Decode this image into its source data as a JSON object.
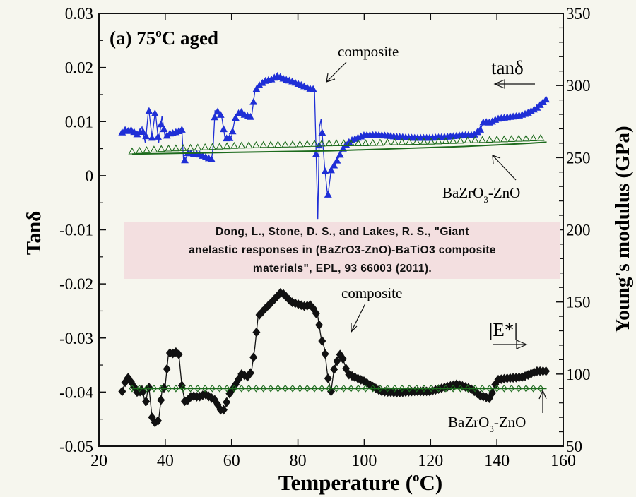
{
  "chart_data": {
    "type": "scatter",
    "title": "(a) 75",
    "title_sup": "o",
    "title_suffix": "C aged",
    "xlabel": "Temperature (",
    "xlabel_sup": "o",
    "xlabel_suffix": "C)",
    "ylabel_left": "Tanδ",
    "ylabel_right": "Young's modulus (GPa)",
    "xlim": [
      20,
      160
    ],
    "ylim_left": [
      -0.05,
      0.03
    ],
    "ylim_right": [
      50,
      350
    ],
    "xticks": [
      "20",
      "40",
      "60",
      "80",
      "100",
      "120",
      "140",
      "160"
    ],
    "yticks_left": [
      "0.03",
      "0.02",
      "0.01",
      "0",
      "-0.01",
      "-0.02",
      "-0.03",
      "-0.04",
      "-0.05"
    ],
    "yticks_right": [
      "350",
      "300",
      "250",
      "200",
      "150",
      "100",
      "50"
    ],
    "series": [
      {
        "name": "composite tanδ",
        "axis": "left",
        "color": "#1f2fd6",
        "marker": "triangle",
        "x": [
          27,
          28,
          29,
          30,
          31,
          32,
          33,
          34,
          35,
          36,
          37,
          38,
          39,
          40,
          41,
          42,
          43,
          44,
          45,
          45.5,
          46,
          47,
          48,
          50,
          52,
          54,
          54.5,
          55,
          56,
          57,
          58,
          59,
          60,
          61,
          62,
          63,
          64,
          65,
          66,
          67,
          68,
          70,
          72,
          74,
          76,
          78,
          80,
          82,
          84,
          85,
          85.5,
          86,
          86.5,
          87,
          88,
          89,
          90,
          91,
          92,
          94,
          96,
          98,
          100,
          105,
          110,
          115,
          120,
          125,
          130,
          133,
          135,
          136,
          138,
          140,
          143,
          146,
          149,
          152,
          155
        ],
        "y": [
          0.008,
          0.0085,
          0.0082,
          0.0085,
          0.0078,
          0.0075,
          0.009,
          0.006,
          0.0125,
          0.007,
          0.012,
          0.006,
          0.011,
          0.007,
          0.0078,
          0.0078,
          0.008,
          0.0082,
          0.0085,
          0.003,
          0.0028,
          0.0045,
          0.004,
          0.004,
          0.0035,
          0.003,
          0.006,
          0.012,
          0.0118,
          0.011,
          0.007,
          0.0068,
          0.0072,
          0.0105,
          0.0115,
          0.0118,
          0.0112,
          0.011,
          0.0108,
          0.0155,
          0.0165,
          0.0175,
          0.0178,
          0.0185,
          0.0178,
          0.0175,
          0.017,
          0.0165,
          0.016,
          0.016,
          0.004,
          -0.008,
          0.009,
          0.0105,
          0.002,
          -0.004,
          0.001,
          0.002,
          0.003,
          0.0055,
          0.0065,
          0.007,
          0.0075,
          0.0075,
          0.0072,
          0.007,
          0.007,
          0.0072,
          0.0075,
          0.0075,
          0.0085,
          0.01,
          0.0098,
          0.0105,
          0.0108,
          0.011,
          0.0115,
          0.0125,
          0.0142
        ]
      },
      {
        "name": "BaZrO3-ZnO tanδ",
        "axis": "left",
        "color": "#1d6b1d",
        "marker": "triangle-open",
        "x": [
          30,
          40,
          50,
          60,
          70,
          80,
          90,
          100,
          110,
          120,
          130,
          140,
          150,
          155
        ],
        "y": [
          0.0045,
          0.005,
          0.0052,
          0.0055,
          0.0057,
          0.0058,
          0.006,
          0.006,
          0.0062,
          0.0063,
          0.0065,
          0.0067,
          0.0069,
          0.007
        ],
        "line_y": [
          0.004,
          0.0041,
          0.0042,
          0.0043,
          0.0044,
          0.0045,
          0.0046,
          0.0048,
          0.005,
          0.0052,
          0.0054,
          0.0057,
          0.006,
          0.0062
        ]
      },
      {
        "name": "composite |E*|",
        "axis": "right",
        "color": "#111111",
        "marker": "diamond",
        "x": [
          27,
          28,
          29,
          30,
          31,
          32,
          33,
          34,
          35,
          36,
          37,
          38,
          39,
          40,
          41,
          42,
          43,
          44,
          45,
          46,
          48,
          50,
          52,
          55,
          57,
          58,
          59,
          61,
          63,
          65,
          66,
          67,
          68,
          70,
          73,
          75,
          78,
          82,
          84,
          86,
          87,
          88,
          89,
          90,
          91,
          93,
          95,
          98,
          100,
          105,
          110,
          115,
          120,
          123,
          128,
          132,
          135,
          138,
          140,
          143,
          148,
          152,
          155
        ],
        "y": [
          88,
          95,
          98,
          93,
          90,
          85,
          92,
          78,
          93,
          70,
          66,
          68,
          88,
          92,
          115,
          114,
          115,
          116,
          92,
          80,
          85,
          84,
          86,
          82,
          74,
          76,
          85,
          92,
          100,
          98,
          102,
          118,
          140,
          145,
          152,
          157,
          150,
          147,
          148,
          140,
          125,
          118,
          98,
          88,
          105,
          115,
          100,
          97,
          95,
          88,
          87,
          88,
          88,
          90,
          93,
          90,
          85,
          83,
          96,
          97,
          98,
          102,
          102
        ]
      },
      {
        "name": "BaZrO3-ZnO |E*|",
        "axis": "right",
        "color": "#1d6b1d",
        "marker": "diamond-open",
        "x": [
          30,
          50,
          70,
          90,
          110,
          130,
          155
        ],
        "y": [
          90,
          90,
          90,
          90,
          90,
          90,
          90
        ]
      }
    ],
    "annotations": {
      "composite_top": "composite",
      "composite_bottom": "composite",
      "tand_label": "tanδ",
      "e_label": "|E*|",
      "bzo_top": "BaZrO",
      "bzo_top_sub": "3",
      "bzo_top_suffix": "-ZnO",
      "bzo_bottom": "BaZrO",
      "bzo_bottom_sub": "3",
      "bzo_bottom_suffix": "-ZnO"
    }
  },
  "citation": {
    "line1": "Dong, L., Stone, D. S., and Lakes, R. S., \"Giant",
    "line2": "anelastic responses in (BaZrO3-ZnO)-BaTiO3 composite",
    "line3": "materials\", EPL, 93 66003 (2011)."
  }
}
